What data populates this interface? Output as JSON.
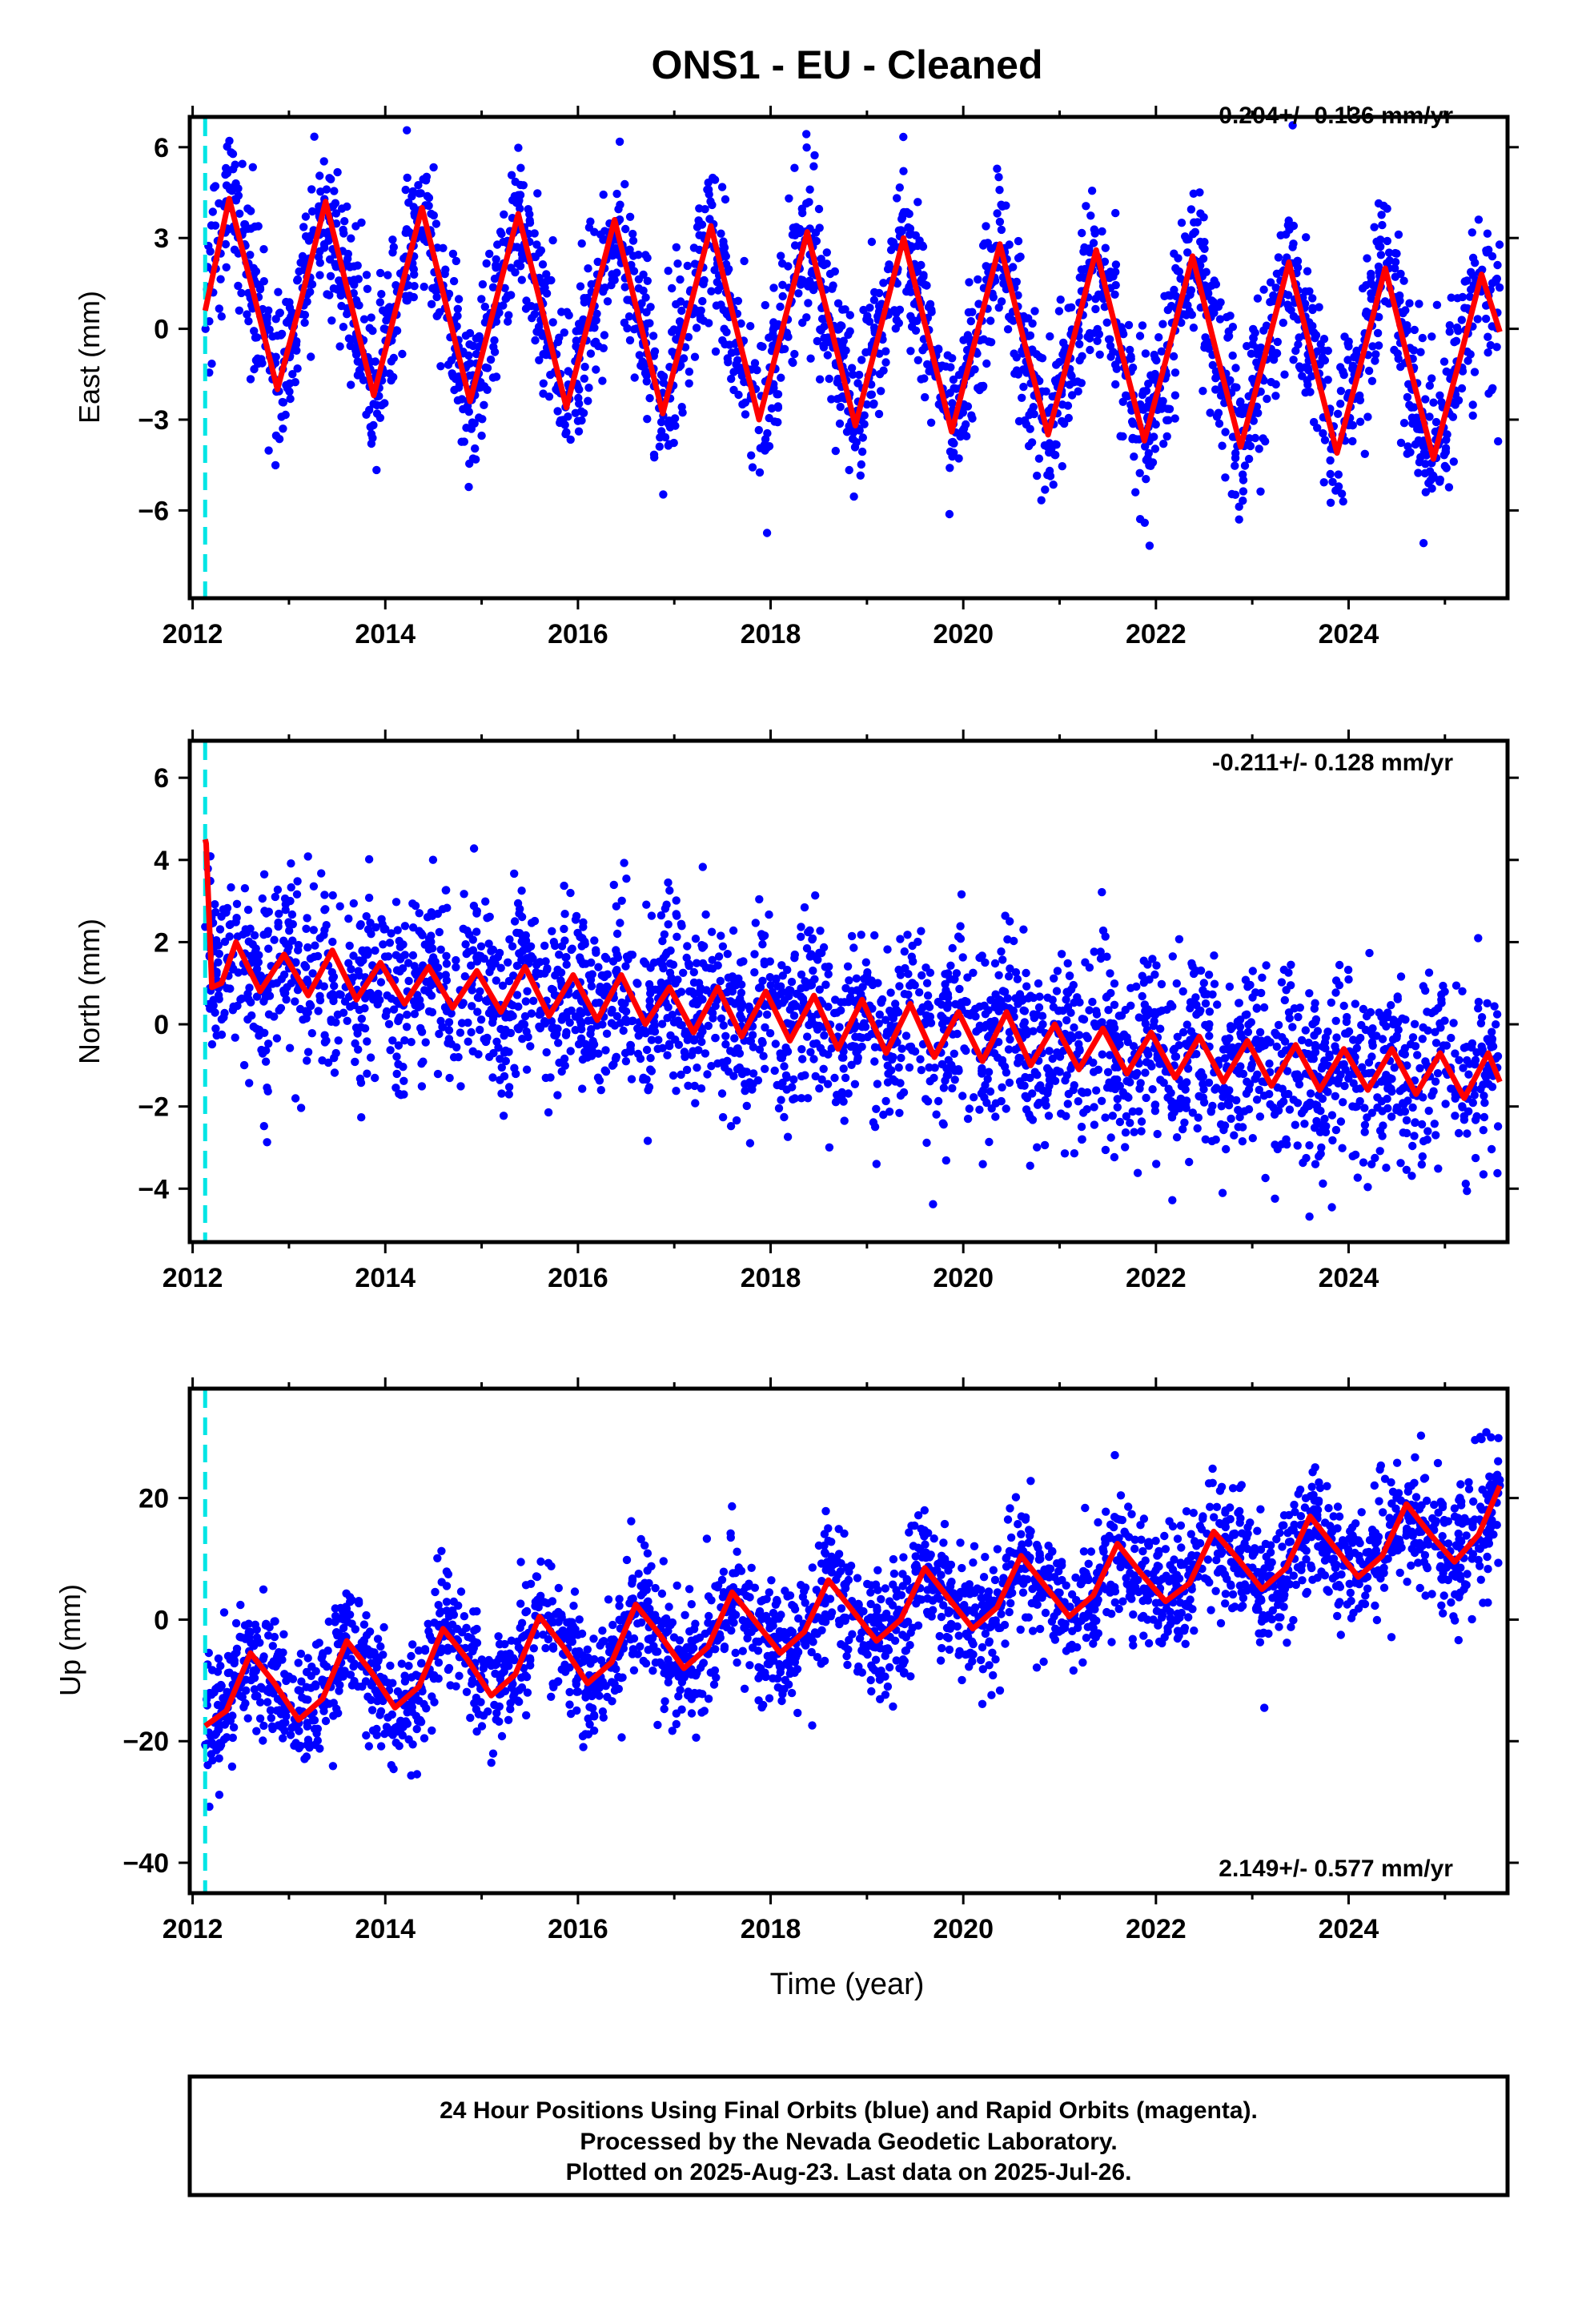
{
  "title": "ONS1  - EU - Cleaned",
  "xlabel": "Time (year)",
  "footer": [
    "24 Hour Positions Using Final Orbits (blue) and Rapid Orbits (magenta).",
    "Processed by the Nevada Geodetic Laboratory.",
    "Plotted on 2025-Aug-23. Last data on 2025-Jul-26."
  ],
  "colors": {
    "final_orbits": "#0000ff",
    "rapid_orbits": "#ff00ff",
    "model_fit": "#ff0000",
    "equipment_change": "#00e5e5",
    "frame": "#000000"
  },
  "chart_data": [
    {
      "type": "scatter",
      "panel": "east",
      "ylabel": "East (mm)",
      "rate_text": "-0.204+/- 0.136 mm/yr",
      "rate_position": "top-right",
      "xlim": [
        2011.97,
        2025.65
      ],
      "ylim": [
        -8.9,
        7.0
      ],
      "xticks": [
        "2012",
        "2014",
        "2016",
        "2018",
        "2020",
        "2022",
        "2024"
      ],
      "yticks": [
        "6",
        "3",
        "0",
        "-3",
        "-6"
      ],
      "grid": false,
      "equipment_change_x": 2012.13,
      "series": [
        {
          "style": "line",
          "x": [
            2012.13,
            2012.38,
            2012.63,
            2012.88,
            2013.13,
            2013.38,
            2013.63,
            2013.88,
            2014.13,
            2014.38,
            2014.63,
            2014.88,
            2015.13,
            2015.38,
            2015.63,
            2015.88,
            2016.13,
            2016.38,
            2016.63,
            2016.88,
            2017.13,
            2017.38,
            2017.63,
            2017.88,
            2018.13,
            2018.38,
            2018.63,
            2018.88,
            2019.13,
            2019.38,
            2019.63,
            2019.88,
            2020.13,
            2020.38,
            2020.63,
            2020.88,
            2021.13,
            2021.38,
            2021.63,
            2021.88,
            2022.13,
            2022.38,
            2022.63,
            2022.88,
            2023.13,
            2023.38,
            2023.63,
            2023.88,
            2024.13,
            2024.38,
            2024.63,
            2024.88,
            2025.13,
            2025.38,
            2025.57
          ],
          "y": [
            0.6,
            4.3,
            1.2,
            -2.0,
            1.0,
            4.2,
            1.0,
            -2.2,
            0.9,
            4.0,
            0.8,
            -2.4,
            0.7,
            3.8,
            0.6,
            -2.6,
            0.5,
            3.6,
            0.4,
            -2.8,
            0.3,
            3.4,
            0.2,
            -3.0,
            0.1,
            3.2,
            0.0,
            -3.2,
            -0.1,
            3.0,
            -0.2,
            -3.4,
            -0.3,
            2.8,
            -0.4,
            -3.5,
            -0.5,
            2.6,
            -0.6,
            -3.7,
            -0.7,
            2.4,
            -0.8,
            -3.9,
            -0.9,
            2.2,
            -1.0,
            -4.1,
            -1.1,
            2.0,
            -1.2,
            -4.3,
            -1.3,
            1.8,
            -0.1
          ]
        }
      ]
    },
    {
      "type": "scatter",
      "panel": "north",
      "ylabel": "North (mm)",
      "rate_text": "-0.211+/- 0.128 mm/yr",
      "rate_position": "top-right",
      "xlim": [
        2011.97,
        2025.65
      ],
      "ylim": [
        -5.3,
        6.9
      ],
      "xticks": [
        "2012",
        "2014",
        "2016",
        "2018",
        "2020",
        "2022",
        "2024"
      ],
      "yticks": [
        "6",
        "4",
        "2",
        "0",
        "-2",
        "-4"
      ],
      "grid": false,
      "equipment_change_x": 2012.13,
      "series": [
        {
          "style": "line",
          "x": [
            2012.13,
            2012.14,
            2012.2,
            2012.3,
            2012.45,
            2012.7,
            2012.95,
            2013.2,
            2013.45,
            2013.7,
            2013.95,
            2014.2,
            2014.45,
            2014.7,
            2014.95,
            2015.2,
            2015.45,
            2015.7,
            2015.95,
            2016.2,
            2016.45,
            2016.7,
            2016.95,
            2017.2,
            2017.45,
            2017.7,
            2017.95,
            2018.2,
            2018.45,
            2018.7,
            2018.95,
            2019.2,
            2019.45,
            2019.7,
            2019.95,
            2020.2,
            2020.45,
            2020.7,
            2020.95,
            2021.2,
            2021.45,
            2021.7,
            2021.95,
            2022.2,
            2022.45,
            2022.7,
            2022.95,
            2023.2,
            2023.45,
            2023.7,
            2023.95,
            2024.2,
            2024.45,
            2024.7,
            2024.95,
            2025.2,
            2025.45,
            2025.57
          ],
          "y": [
            4.5,
            4.4,
            0.9,
            1.0,
            2.0,
            0.8,
            1.7,
            0.7,
            1.8,
            0.6,
            1.5,
            0.5,
            1.4,
            0.4,
            1.3,
            0.3,
            1.4,
            0.2,
            1.2,
            0.1,
            1.2,
            0.0,
            0.9,
            -0.2,
            0.9,
            -0.3,
            0.8,
            -0.4,
            0.7,
            -0.6,
            0.6,
            -0.7,
            0.5,
            -0.8,
            0.3,
            -0.9,
            0.3,
            -1.0,
            0.0,
            -1.1,
            -0.1,
            -1.2,
            -0.2,
            -1.3,
            -0.3,
            -1.4,
            -0.4,
            -1.5,
            -0.5,
            -1.6,
            -0.6,
            -1.6,
            -0.6,
            -1.7,
            -0.7,
            -1.8,
            -0.7,
            -1.4
          ]
        }
      ]
    },
    {
      "type": "scatter",
      "panel": "up",
      "ylabel": "Up (mm)",
      "rate_text": "2.149+/- 0.577 mm/yr",
      "rate_position": "bottom-right",
      "xlim": [
        2011.97,
        2025.65
      ],
      "ylim": [
        -45.0,
        38.0
      ],
      "xticks": [
        "2012",
        "2014",
        "2016",
        "2018",
        "2020",
        "2022",
        "2024"
      ],
      "yticks": [
        "20",
        "0",
        "-20",
        "-40"
      ],
      "grid": false,
      "equipment_change_x": 2012.13,
      "series": [
        {
          "style": "line",
          "x": [
            2012.13,
            2012.35,
            2012.6,
            2012.85,
            2013.1,
            2013.35,
            2013.6,
            2013.85,
            2014.1,
            2014.35,
            2014.6,
            2014.85,
            2015.1,
            2015.35,
            2015.6,
            2015.85,
            2016.1,
            2016.35,
            2016.6,
            2016.85,
            2017.1,
            2017.35,
            2017.6,
            2017.85,
            2018.1,
            2018.35,
            2018.6,
            2018.85,
            2019.1,
            2019.35,
            2019.6,
            2019.85,
            2020.1,
            2020.35,
            2020.6,
            2020.85,
            2021.1,
            2021.35,
            2021.6,
            2021.85,
            2022.1,
            2022.35,
            2022.6,
            2022.85,
            2023.1,
            2023.35,
            2023.6,
            2023.85,
            2024.1,
            2024.35,
            2024.6,
            2024.85,
            2025.1,
            2025.35,
            2025.57
          ],
          "y": [
            -17.5,
            -15.0,
            -5.5,
            -10.5,
            -16.5,
            -13.0,
            -3.5,
            -8.5,
            -14.5,
            -11.0,
            -1.5,
            -6.5,
            -12.5,
            -9.0,
            0.5,
            -4.5,
            -10.5,
            -7.0,
            2.5,
            -2.5,
            -8.0,
            -4.5,
            4.5,
            -0.5,
            -5.5,
            -2.0,
            6.5,
            1.5,
            -3.5,
            0.0,
            8.5,
            3.5,
            -1.5,
            2.0,
            10.5,
            5.5,
            0.5,
            4.0,
            12.5,
            7.5,
            3.0,
            6.0,
            14.5,
            10.0,
            5.0,
            8.5,
            17.0,
            12.0,
            7.0,
            10.5,
            19.0,
            14.0,
            9.5,
            14.0,
            22.0
          ]
        }
      ]
    }
  ]
}
